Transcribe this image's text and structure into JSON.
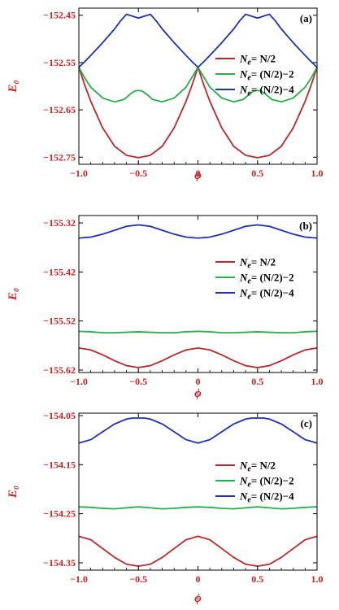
{
  "colors": {
    "tick_label": "#d42020",
    "frame": "#000000"
  },
  "chart_data": [
    {
      "type": "line",
      "panel_label": "(a)",
      "xlabel": "ϕ",
      "ylabel": "E₀",
      "xlim": [
        -1.0,
        1.0
      ],
      "ylim": [
        -152.765,
        -152.435
      ],
      "x_ticks": [
        -1.0,
        -0.5,
        0.0,
        0.5,
        1.0
      ],
      "x_tick_labels": [
        "−1.0",
        "−0.5",
        "0",
        "0.5",
        "1.0"
      ],
      "y_ticks": [
        -152.45,
        -152.55,
        -152.65,
        -152.75
      ],
      "y_tick_labels": [
        "−152.45",
        "−152.55",
        "−152.65",
        "−152.75"
      ],
      "legend": {
        "position": "middle-right",
        "entries": [
          "Ne= N/2",
          "Ne= (N/2)−2",
          "Ne= (N/2)−4"
        ]
      },
      "series": [
        {
          "name": "Ne= N/2",
          "color": "#c0272d",
          "x": [
            -1.0,
            -0.95,
            -0.9,
            -0.8,
            -0.7,
            -0.6,
            -0.5,
            -0.4,
            -0.3,
            -0.2,
            -0.1,
            -0.05,
            0.0,
            0.05,
            0.1,
            0.2,
            0.3,
            0.4,
            0.5,
            0.6,
            0.7,
            0.8,
            0.9,
            0.95,
            1.0
          ],
          "y": [
            -152.56,
            -152.598,
            -152.632,
            -152.688,
            -152.727,
            -152.746,
            -152.751,
            -152.746,
            -152.727,
            -152.688,
            -152.632,
            -152.598,
            -152.56,
            -152.598,
            -152.632,
            -152.688,
            -152.727,
            -152.746,
            -152.751,
            -152.746,
            -152.727,
            -152.688,
            -152.632,
            -152.598,
            -152.56
          ]
        },
        {
          "name": "Ne= (N/2)−2",
          "color": "#22b14c",
          "x": [
            -1.0,
            -0.95,
            -0.9,
            -0.8,
            -0.7,
            -0.62,
            -0.57,
            -0.53,
            -0.5,
            -0.47,
            -0.43,
            -0.38,
            -0.3,
            -0.2,
            -0.1,
            0.0,
            0.1,
            0.2,
            0.3,
            0.38,
            0.43,
            0.47,
            0.5,
            0.53,
            0.57,
            0.62,
            0.7,
            0.8,
            0.9,
            0.95,
            1.0
          ],
          "y": [
            -152.56,
            -152.583,
            -152.602,
            -152.625,
            -152.633,
            -152.628,
            -152.617,
            -152.61,
            -152.609,
            -152.61,
            -152.617,
            -152.628,
            -152.633,
            -152.625,
            -152.602,
            -152.56,
            -152.602,
            -152.625,
            -152.633,
            -152.628,
            -152.617,
            -152.61,
            -152.609,
            -152.61,
            -152.617,
            -152.628,
            -152.633,
            -152.625,
            -152.602,
            -152.583,
            -152.56
          ]
        },
        {
          "name": "Ne= (N/2)−4",
          "color": "#1f2fbf",
          "x": [
            -1.0,
            -0.95,
            -0.9,
            -0.8,
            -0.7,
            -0.65,
            -0.6,
            -0.55,
            -0.5,
            -0.45,
            -0.4,
            -0.35,
            -0.3,
            -0.2,
            -0.1,
            -0.05,
            0.0,
            0.05,
            0.1,
            0.2,
            0.3,
            0.35,
            0.4,
            0.45,
            0.5,
            0.55,
            0.6,
            0.65,
            0.7,
            0.8,
            0.9,
            0.95,
            1.0
          ],
          "y": [
            -152.56,
            -152.548,
            -152.535,
            -152.508,
            -152.479,
            -152.462,
            -152.448,
            -152.452,
            -152.456,
            -152.452,
            -152.448,
            -152.462,
            -152.479,
            -152.508,
            -152.535,
            -152.548,
            -152.56,
            -152.548,
            -152.535,
            -152.508,
            -152.479,
            -152.462,
            -152.448,
            -152.452,
            -152.456,
            -152.452,
            -152.448,
            -152.462,
            -152.479,
            -152.508,
            -152.535,
            -152.548,
            -152.56
          ]
        }
      ]
    },
    {
      "type": "line",
      "panel_label": "(b)",
      "xlabel": "ϕ",
      "ylabel": "E₀",
      "xlim": [
        -1.0,
        1.0
      ],
      "ylim": [
        -155.625,
        -155.305
      ],
      "x_ticks": [
        -1.0,
        -0.5,
        0.0,
        0.5,
        1.0
      ],
      "x_tick_labels": [
        "−1.0",
        "−0.5",
        "0",
        "0.5",
        "1.0"
      ],
      "y_ticks": [
        -155.32,
        -155.42,
        -155.52,
        -155.62
      ],
      "y_tick_labels": [
        "−155.32",
        "−155.42",
        "−155.52",
        "−155.62"
      ],
      "legend": {
        "position": "middle-right",
        "entries": [
          "Ne= N/2",
          "Ne= (N/2)−2",
          "Ne= (N/2)−4"
        ]
      },
      "series": [
        {
          "name": "Ne= N/2",
          "color": "#c0272d",
          "x": [
            -1.0,
            -0.9,
            -0.8,
            -0.7,
            -0.6,
            -0.5,
            -0.4,
            -0.3,
            -0.2,
            -0.1,
            0.0,
            0.1,
            0.2,
            0.3,
            0.4,
            0.5,
            0.6,
            0.7,
            0.8,
            0.9,
            1.0
          ],
          "y": [
            -155.575,
            -155.579,
            -155.589,
            -155.601,
            -155.611,
            -155.615,
            -155.611,
            -155.601,
            -155.589,
            -155.579,
            -155.575,
            -155.579,
            -155.589,
            -155.601,
            -155.611,
            -155.615,
            -155.611,
            -155.601,
            -155.589,
            -155.579,
            -155.575
          ]
        },
        {
          "name": "Ne= (N/2)−2",
          "color": "#22b14c",
          "x": [
            -1.0,
            -0.9,
            -0.8,
            -0.7,
            -0.6,
            -0.5,
            -0.4,
            -0.3,
            -0.2,
            -0.1,
            0.0,
            0.1,
            0.2,
            0.3,
            0.4,
            0.5,
            0.6,
            0.7,
            0.8,
            0.9,
            1.0
          ],
          "y": [
            -155.541,
            -155.542,
            -155.544,
            -155.544,
            -155.543,
            -155.542,
            -155.543,
            -155.544,
            -155.544,
            -155.542,
            -155.541,
            -155.542,
            -155.544,
            -155.544,
            -155.543,
            -155.542,
            -155.543,
            -155.544,
            -155.544,
            -155.542,
            -155.541
          ]
        },
        {
          "name": "Ne= (N/2)−4",
          "color": "#1f2fbf",
          "x": [
            -1.0,
            -0.9,
            -0.8,
            -0.7,
            -0.6,
            -0.5,
            -0.4,
            -0.3,
            -0.2,
            -0.1,
            0.0,
            0.1,
            0.2,
            0.3,
            0.4,
            0.5,
            0.6,
            0.7,
            0.8,
            0.9,
            1.0
          ],
          "y": [
            -155.351,
            -155.349,
            -155.343,
            -155.335,
            -155.327,
            -155.324,
            -155.327,
            -155.335,
            -155.343,
            -155.349,
            -155.351,
            -155.349,
            -155.343,
            -155.335,
            -155.327,
            -155.324,
            -155.327,
            -155.335,
            -155.343,
            -155.349,
            -155.351
          ]
        }
      ]
    },
    {
      "type": "line",
      "panel_label": "(c)",
      "xlabel": "ϕ",
      "ylabel": "E₀",
      "xlim": [
        -1.0,
        1.0
      ],
      "ylim": [
        -154.365,
        -154.045
      ],
      "x_ticks": [
        -1.0,
        -0.5,
        0.0,
        0.5,
        1.0
      ],
      "x_tick_labels": [
        "−1.0",
        "−0.5",
        "0",
        "0.5",
        "1.0"
      ],
      "y_ticks": [
        -154.05,
        -154.15,
        -154.25,
        -154.35
      ],
      "y_tick_labels": [
        "−154.05",
        "−154.15",
        "−154.25",
        "−154.35"
      ],
      "legend": {
        "position": "middle-right",
        "entries": [
          "Ne= N/2",
          "Ne= (N/2)−2",
          "Ne= (N/2)−4"
        ]
      },
      "series": [
        {
          "name": "Ne= N/2",
          "color": "#c0272d",
          "x": [
            -1.0,
            -0.9,
            -0.8,
            -0.7,
            -0.6,
            -0.5,
            -0.4,
            -0.3,
            -0.2,
            -0.1,
            0.0,
            0.1,
            0.2,
            0.3,
            0.4,
            0.5,
            0.6,
            0.7,
            0.8,
            0.9,
            1.0
          ],
          "y": [
            -154.296,
            -154.303,
            -154.321,
            -154.339,
            -154.353,
            -154.357,
            -154.353,
            -154.339,
            -154.321,
            -154.303,
            -154.296,
            -154.303,
            -154.321,
            -154.339,
            -154.353,
            -154.357,
            -154.353,
            -154.339,
            -154.321,
            -154.303,
            -154.296
          ]
        },
        {
          "name": "Ne= (N/2)−2",
          "color": "#22b14c",
          "x": [
            -1.0,
            -0.9,
            -0.8,
            -0.7,
            -0.6,
            -0.5,
            -0.4,
            -0.3,
            -0.2,
            -0.1,
            0.0,
            0.1,
            0.2,
            0.3,
            0.4,
            0.5,
            0.6,
            0.7,
            0.8,
            0.9,
            1.0
          ],
          "y": [
            -154.236,
            -154.237,
            -154.239,
            -154.24,
            -154.238,
            -154.236,
            -154.238,
            -154.24,
            -154.239,
            -154.237,
            -154.236,
            -154.237,
            -154.239,
            -154.24,
            -154.238,
            -154.236,
            -154.238,
            -154.24,
            -154.239,
            -154.237,
            -154.236
          ]
        },
        {
          "name": "Ne= (N/2)−4",
          "color": "#1f2fbf",
          "x": [
            -1.0,
            -0.9,
            -0.8,
            -0.7,
            -0.6,
            -0.55,
            -0.5,
            -0.45,
            -0.4,
            -0.3,
            -0.2,
            -0.1,
            0.0,
            0.1,
            0.2,
            0.3,
            0.4,
            0.45,
            0.5,
            0.55,
            0.6,
            0.7,
            0.8,
            0.9,
            1.0
          ],
          "y": [
            -154.106,
            -154.099,
            -154.083,
            -154.067,
            -154.057,
            -154.055,
            -154.055,
            -154.055,
            -154.057,
            -154.067,
            -154.083,
            -154.099,
            -154.106,
            -154.099,
            -154.083,
            -154.067,
            -154.057,
            -154.055,
            -154.055,
            -154.055,
            -154.057,
            -154.067,
            -154.083,
            -154.099,
            -154.106
          ]
        }
      ]
    }
  ]
}
